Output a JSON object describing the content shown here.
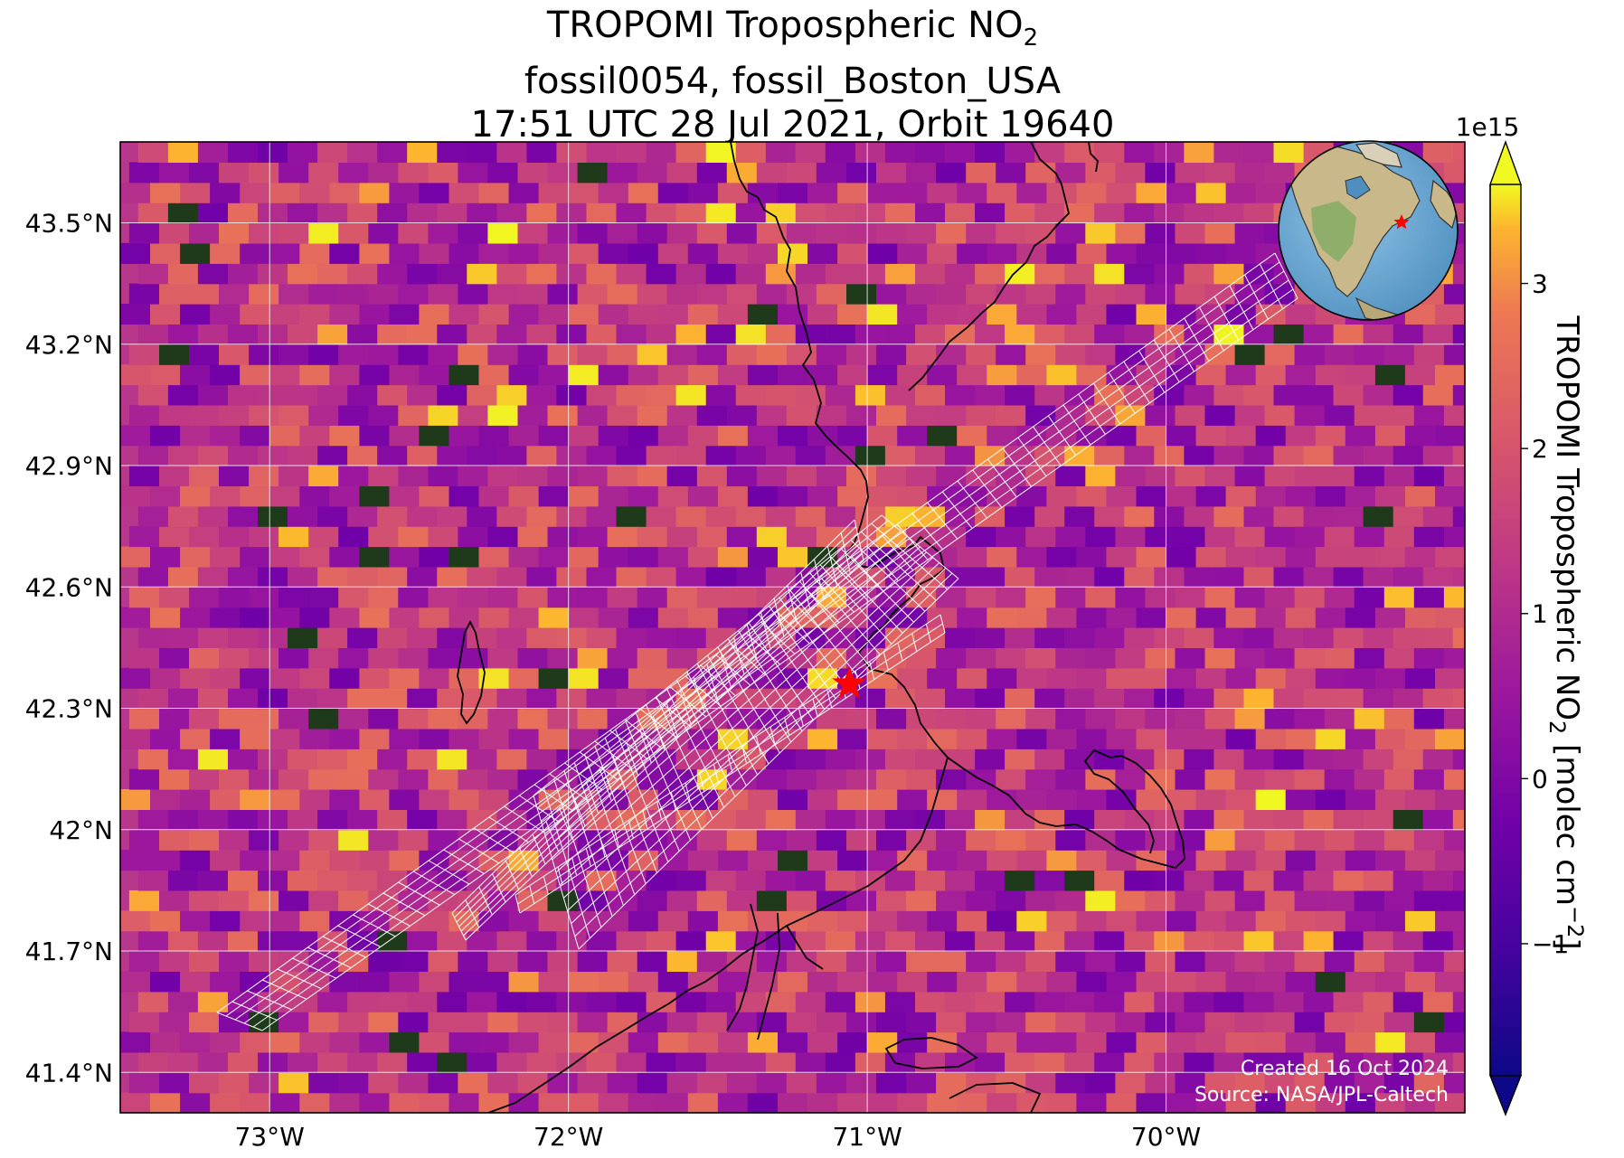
{
  "title": {
    "line1_main": "TROPOMI Tropospheric NO",
    "line1_sub": "2",
    "line2": "fossil0054, fossil_Boston_USA",
    "line3": "17:51 UTC 28 Jul 2021, Orbit 19640"
  },
  "map": {
    "lon_range": [
      -73.5,
      -69.0
    ],
    "lat_range": [
      41.3,
      43.7
    ],
    "lon_ticks": [
      {
        "value": -73,
        "label": "73°W"
      },
      {
        "value": -72,
        "label": "72°W"
      },
      {
        "value": -71,
        "label": "71°W"
      },
      {
        "value": -70,
        "label": "70°W"
      }
    ],
    "lat_ticks": [
      {
        "value": 43.5,
        "label": "43.5°N"
      },
      {
        "value": 43.2,
        "label": "43.2°N"
      },
      {
        "value": 42.9,
        "label": "42.9°N"
      },
      {
        "value": 42.6,
        "label": "42.6°N"
      },
      {
        "value": 42.3,
        "label": "42.3°N"
      },
      {
        "value": 42.0,
        "label": "42°N"
      },
      {
        "value": 41.7,
        "label": "41.7°N"
      },
      {
        "value": 41.4,
        "label": "41.4°N"
      }
    ],
    "target": {
      "name": "fossil_Boston_USA",
      "lon": -71.06,
      "lat": 42.36,
      "color": "#ff0000"
    },
    "grid_color": "#ffffff",
    "coast_color": "#000000",
    "swath_color": "#ffffff"
  },
  "colorbar": {
    "label_main": "TROPOMI Tropospheric NO",
    "label_sub": "2",
    "label_unit_open": " [molec cm",
    "label_unit_sup": "−2",
    "label_unit_close": "]",
    "scale_label": "1e15",
    "range": [
      -1.8,
      3.6
    ],
    "ticks": [
      {
        "value": -1,
        "label": "−1"
      },
      {
        "value": 0,
        "label": "0"
      },
      {
        "value": 1,
        "label": "1"
      },
      {
        "value": 2,
        "label": "2"
      },
      {
        "value": 3,
        "label": "3"
      }
    ],
    "colormap": "plasma",
    "extend": "both"
  },
  "credits": {
    "created": "Created 16 Oct 2024",
    "source": "Source: NASA/JPL-Caltech"
  },
  "inset_globe": {
    "description_star_color": "#ff0000"
  }
}
